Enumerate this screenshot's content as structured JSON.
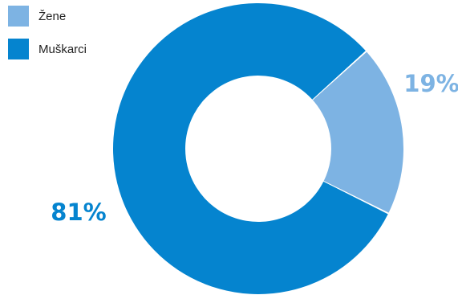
{
  "chart_data": {
    "type": "pie",
    "variant": "donut",
    "series": [
      {
        "name": "Žene",
        "value": 19,
        "label": "19%",
        "color": "#7db3e3"
      },
      {
        "name": "Muškarci",
        "value": 81,
        "label": "81%",
        "color": "#0584cf"
      }
    ],
    "legend_position": "top-left"
  }
}
